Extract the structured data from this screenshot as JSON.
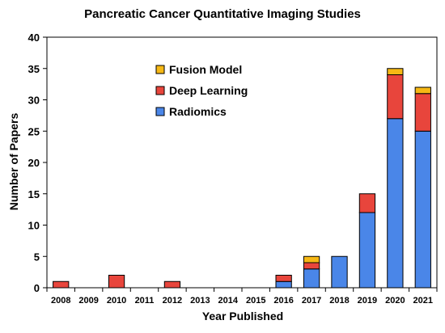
{
  "chart_data": {
    "type": "bar",
    "stacked": true,
    "title": "Pancreatic Cancer Quantitative Imaging Studies",
    "xlabel": "Year Published",
    "ylabel": "Number of Papers",
    "categories": [
      "2008",
      "2009",
      "2010",
      "2011",
      "2012",
      "2013",
      "2014",
      "2015",
      "2016",
      "2017",
      "2018",
      "2019",
      "2020",
      "2021"
    ],
    "ylim": [
      0,
      40
    ],
    "yticks": [
      0,
      5,
      10,
      15,
      20,
      25,
      30,
      35,
      40
    ],
    "grid": false,
    "legend_position": "top-center",
    "series": [
      {
        "name": "Radiomics",
        "color": "#4a86e8",
        "values": [
          0,
          0,
          0,
          0,
          0,
          0,
          0,
          0,
          1,
          3,
          5,
          12,
          27,
          25
        ]
      },
      {
        "name": "Deep Learning",
        "color": "#e8453c",
        "values": [
          1,
          0,
          2,
          0,
          1,
          0,
          0,
          0,
          1,
          1,
          0,
          3,
          7,
          6
        ]
      },
      {
        "name": "Fusion Model",
        "color": "#f6b815",
        "values": [
          0,
          0,
          0,
          0,
          0,
          0,
          0,
          0,
          0,
          1,
          0,
          0,
          1,
          1
        ]
      }
    ],
    "legend_order": [
      "Fusion Model",
      "Deep Learning",
      "Radiomics"
    ]
  }
}
